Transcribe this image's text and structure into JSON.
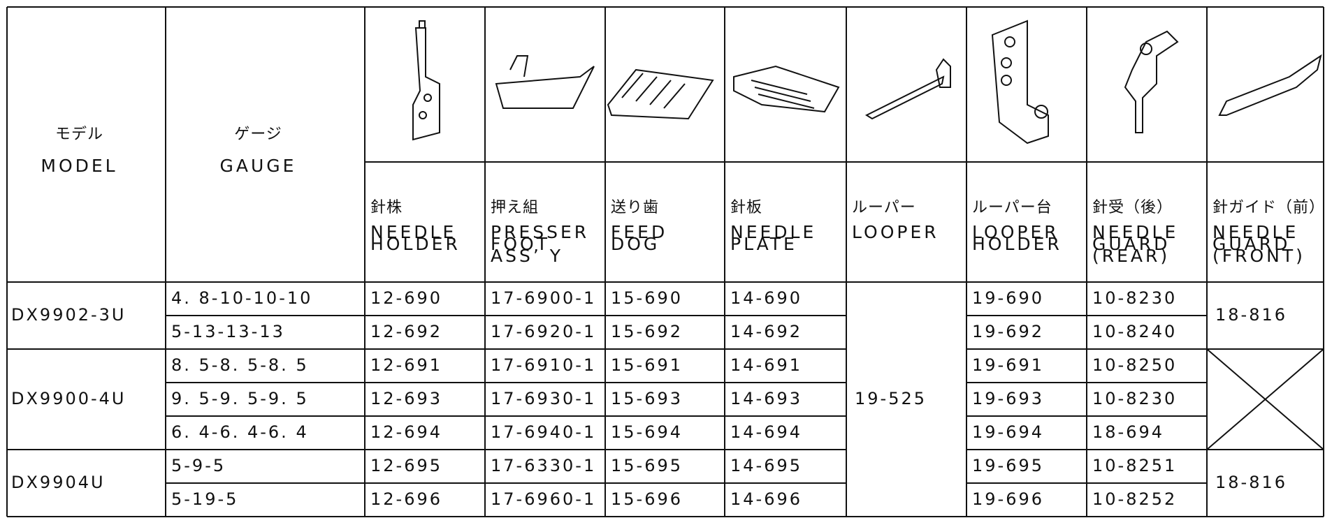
{
  "header": {
    "model_ja": "モデル",
    "model_en": "MODEL",
    "gauge_ja": "ゲージ",
    "gauge_en": "GAUGE",
    "columns": [
      {
        "ja": "針株",
        "en": [
          "NEEDLE",
          "HOLDER"
        ]
      },
      {
        "ja": "押え組",
        "en": [
          "PRESSER",
          "FOOT",
          "ASS’ Y"
        ]
      },
      {
        "ja": "送り歯",
        "en": [
          "FEED",
          "DOG"
        ]
      },
      {
        "ja": "針板",
        "en": [
          "NEEDLE",
          "PLATE"
        ]
      },
      {
        "ja": "ルーパー",
        "en": [
          "LOOPER"
        ]
      },
      {
        "ja": "ルーパー台",
        "en": [
          "LOOPER",
          "HOLDER"
        ]
      },
      {
        "ja": "針受（後）",
        "en": [
          "NEEDLE",
          "GUARD",
          "(REAR)"
        ]
      },
      {
        "ja": "針ガイド（前）",
        "en": [
          "NEEDLE",
          "GUARD",
          "(FRONT)"
        ]
      }
    ]
  },
  "looper": "19-525",
  "groups": [
    {
      "model": "DX9902-3U",
      "front_guard": "18-816",
      "rows": [
        [
          "4. 8-10-10-10",
          "12-690",
          "17-6900-1",
          "15-690",
          "14-690",
          "19-690",
          "10-8230"
        ],
        [
          "5-13-13-13",
          "12-692",
          "17-6920-1",
          "15-692",
          "14-692",
          "19-692",
          "10-8240"
        ]
      ]
    },
    {
      "model": "DX9900-4U",
      "rows": [
        [
          "8. 5-8. 5-8. 5",
          "12-691",
          "17-6910-1",
          "15-691",
          "14-691",
          "19-691",
          "10-8250"
        ],
        [
          "9. 5-9. 5-9. 5",
          "12-693",
          "17-6930-1",
          "15-693",
          "14-693",
          "19-693",
          "10-8230"
        ],
        [
          "6. 4-6. 4-6. 4",
          "12-694",
          "17-6940-1",
          "15-694",
          "14-694",
          "19-694",
          "18-694"
        ]
      ]
    },
    {
      "model": "DX9904U",
      "front_guard": "18-816",
      "rows": [
        [
          "5-9-5",
          "12-695",
          "17-6330-1",
          "15-695",
          "14-695",
          "19-695",
          "10-8251"
        ],
        [
          "5-19-5",
          "12-696",
          "17-6960-1",
          "15-696",
          "14-696",
          "19-696",
          "10-8252"
        ]
      ]
    }
  ]
}
